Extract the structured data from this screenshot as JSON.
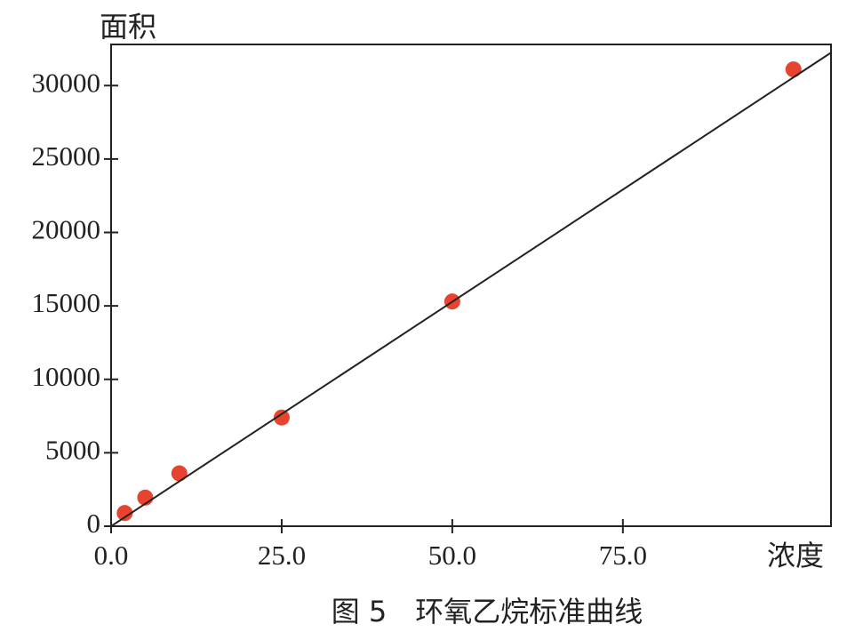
{
  "chart_data": {
    "type": "scatter",
    "title": "图 5　环氧乙烷标准曲线",
    "xlabel": "浓度",
    "ylabel": "面积",
    "xlim": [
      0,
      105.5
    ],
    "ylim": [
      0,
      32800
    ],
    "xticks": [
      {
        "value": 0,
        "label": "0.0"
      },
      {
        "value": 25,
        "label": "25.0"
      },
      {
        "value": 50,
        "label": "50.0"
      },
      {
        "value": 75,
        "label": "75.0"
      }
    ],
    "yticks": [
      0,
      5000,
      10000,
      15000,
      20000,
      25000,
      30000
    ],
    "series": [
      {
        "color": "#e8432e",
        "x": [
          2,
          5,
          10,
          25,
          50,
          100
        ],
        "values": [
          900,
          1950,
          3600,
          7400,
          15300,
          31100
        ]
      },
      {
        "color": "#222222",
        "style": "line",
        "x": [
          0,
          105.5
        ],
        "values": [
          0,
          32240
        ]
      }
    ]
  }
}
